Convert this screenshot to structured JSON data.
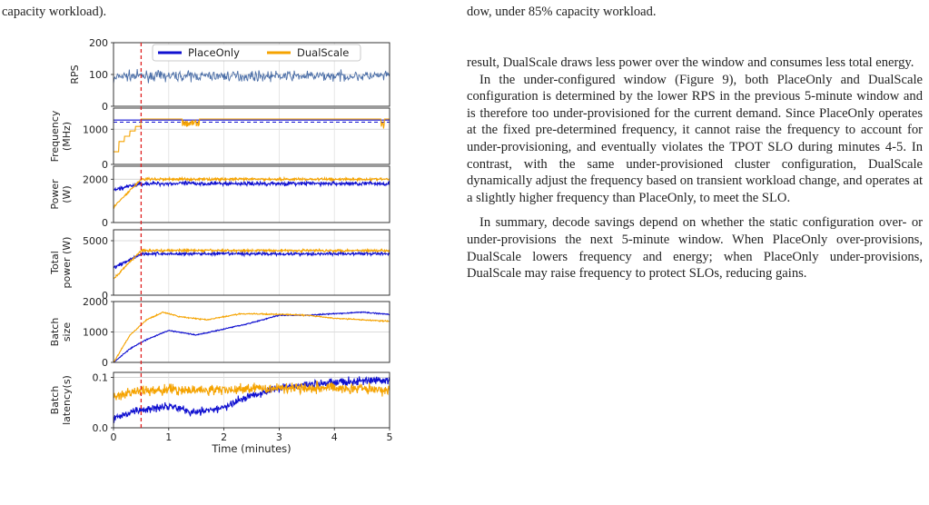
{
  "captions": {
    "left_tail": "capacity workload).",
    "right_tail": "dow, under 85% capacity workload."
  },
  "paragraphs": [
    "result, DualScale draws less power over the window and consumes less total energy.",
    "In the under-configured window (Figure 9), both PlaceOnly and DualScale configuration is determined by the lower RPS in the previous 5-minute window and is therefore too under-provisioned for the current demand. Since PlaceOnly operates at the fixed pre-determined frequency, it cannot raise the frequency to account for under-provisioning, and eventually violates the TPOT SLO during minutes 4-5. In contrast, with the same under-provisioned cluster configuration, DualScale dynamically adjust the frequency based on transient workload change, and operates at a slightly higher frequency than PlaceOnly, to meet the SLO.",
    "In summary, decode savings depend on whether the static configuration over- or under-provisions the next 5-minute window. When PlaceOnly over-provisions, DualScale lowers frequency and energy; when PlaceOnly under-provisions, DualScale may raise frequency to protect SLOs, reducing gains."
  ],
  "chart_data": {
    "type": "line",
    "xlabel": "Time (minutes)",
    "xlim": [
      0,
      5
    ],
    "x_ticks": [
      "0",
      "1",
      "2",
      "3",
      "4",
      "5"
    ],
    "event_line_x": 0.5,
    "legend": [
      "PlaceOnly",
      "DualScale"
    ],
    "colors": {
      "PlaceOnly": "#1010d0",
      "DualScale": "#f5a300",
      "RPS": "#4c6fa8",
      "event": "#e02020"
    },
    "panels": [
      {
        "ylabel": [
          "RPS"
        ],
        "ylim": [
          0,
          200
        ],
        "yticks": [
          "0",
          "100",
          "200"
        ],
        "series": [
          {
            "name": "RPS",
            "mean": 95,
            "noise": 15,
            "start": 80,
            "ramp": 0.1
          }
        ]
      },
      {
        "ylabel": [
          "Frequency",
          "(MHz)"
        ],
        "ylim": [
          0,
          1600
        ],
        "yticks": [
          "0",
          "1000"
        ],
        "series": [
          {
            "name": "PlaceOnly",
            "constant": 1260,
            "dashed_at": 1200
          },
          {
            "name": "DualScale",
            "steps": [
              [
                0,
                360
              ],
              [
                0.1,
                650
              ],
              [
                0.2,
                800
              ],
              [
                0.3,
                950
              ],
              [
                0.4,
                1080
              ],
              [
                0.5,
                1290
              ],
              [
                5,
                1290
              ]
            ],
            "dips": [
              [
                1.25,
                1.55,
                1080
              ],
              [
                4.85,
                4.9,
                1000
              ]
            ]
          }
        ]
      },
      {
        "ylabel": [
          "Power",
          "(W)"
        ],
        "ylim": [
          0,
          2600
        ],
        "yticks": [
          "0",
          "2000"
        ],
        "series": [
          {
            "name": "PlaceOnly",
            "start": 1500,
            "mean": 1800,
            "noise": 90,
            "ramp": 0.5
          },
          {
            "name": "DualScale",
            "start": 700,
            "mean": 2000,
            "noise": 60,
            "ramp": 0.5
          }
        ]
      },
      {
        "ylabel": [
          "Total",
          "power (W)"
        ],
        "ylim": [
          0,
          6000
        ],
        "yticks": [
          "0",
          "5000"
        ],
        "series": [
          {
            "name": "PlaceOnly",
            "start": 2500,
            "mean": 3800,
            "noise": 140,
            "ramp": 0.5
          },
          {
            "name": "DualScale",
            "start": 1500,
            "mean": 4100,
            "noise": 110,
            "ramp": 0.5
          }
        ]
      },
      {
        "ylabel": [
          "Batch",
          "size"
        ],
        "ylim": [
          0,
          2000
        ],
        "yticks": [
          "0",
          "1000",
          "2000"
        ],
        "series": [
          {
            "name": "PlaceOnly",
            "points": [
              [
                0,
                0
              ],
              [
                0.3,
                450
              ],
              [
                0.6,
                750
              ],
              [
                1.0,
                1050
              ],
              [
                1.5,
                900
              ],
              [
                2.0,
                1100
              ],
              [
                2.5,
                1300
              ],
              [
                3.0,
                1550
              ],
              [
                3.5,
                1550
              ],
              [
                4.0,
                1600
              ],
              [
                4.5,
                1650
              ],
              [
                5.0,
                1580
              ]
            ]
          },
          {
            "name": "DualScale",
            "points": [
              [
                0,
                0
              ],
              [
                0.3,
                900
              ],
              [
                0.6,
                1400
              ],
              [
                0.9,
                1650
              ],
              [
                1.2,
                1500
              ],
              [
                1.7,
                1400
              ],
              [
                2.3,
                1600
              ],
              [
                3.0,
                1580
              ],
              [
                3.5,
                1550
              ],
              [
                4.0,
                1450
              ],
              [
                4.5,
                1400
              ],
              [
                5.0,
                1350
              ]
            ]
          }
        ]
      },
      {
        "ylabel": [
          "Batch",
          "latency(s)"
        ],
        "ylim": [
          0,
          0.11
        ],
        "yticks": [
          "0.0",
          "0.1"
        ],
        "series": [
          {
            "name": "PlaceOnly",
            "points": [
              [
                0,
                0.02
              ],
              [
                0.5,
                0.035
              ],
              [
                1.0,
                0.045
              ],
              [
                1.5,
                0.03
              ],
              [
                2.0,
                0.04
              ],
              [
                2.5,
                0.065
              ],
              [
                3.0,
                0.08
              ],
              [
                4.0,
                0.09
              ],
              [
                5.0,
                0.095
              ]
            ],
            "noise": 0.008
          },
          {
            "name": "DualScale",
            "points": [
              [
                0,
                0.06
              ],
              [
                0.5,
                0.075
              ],
              [
                1.0,
                0.075
              ],
              [
                2.0,
                0.075
              ],
              [
                3.0,
                0.08
              ],
              [
                4.0,
                0.08
              ],
              [
                5.0,
                0.075
              ]
            ],
            "noise": 0.01
          }
        ]
      }
    ]
  }
}
